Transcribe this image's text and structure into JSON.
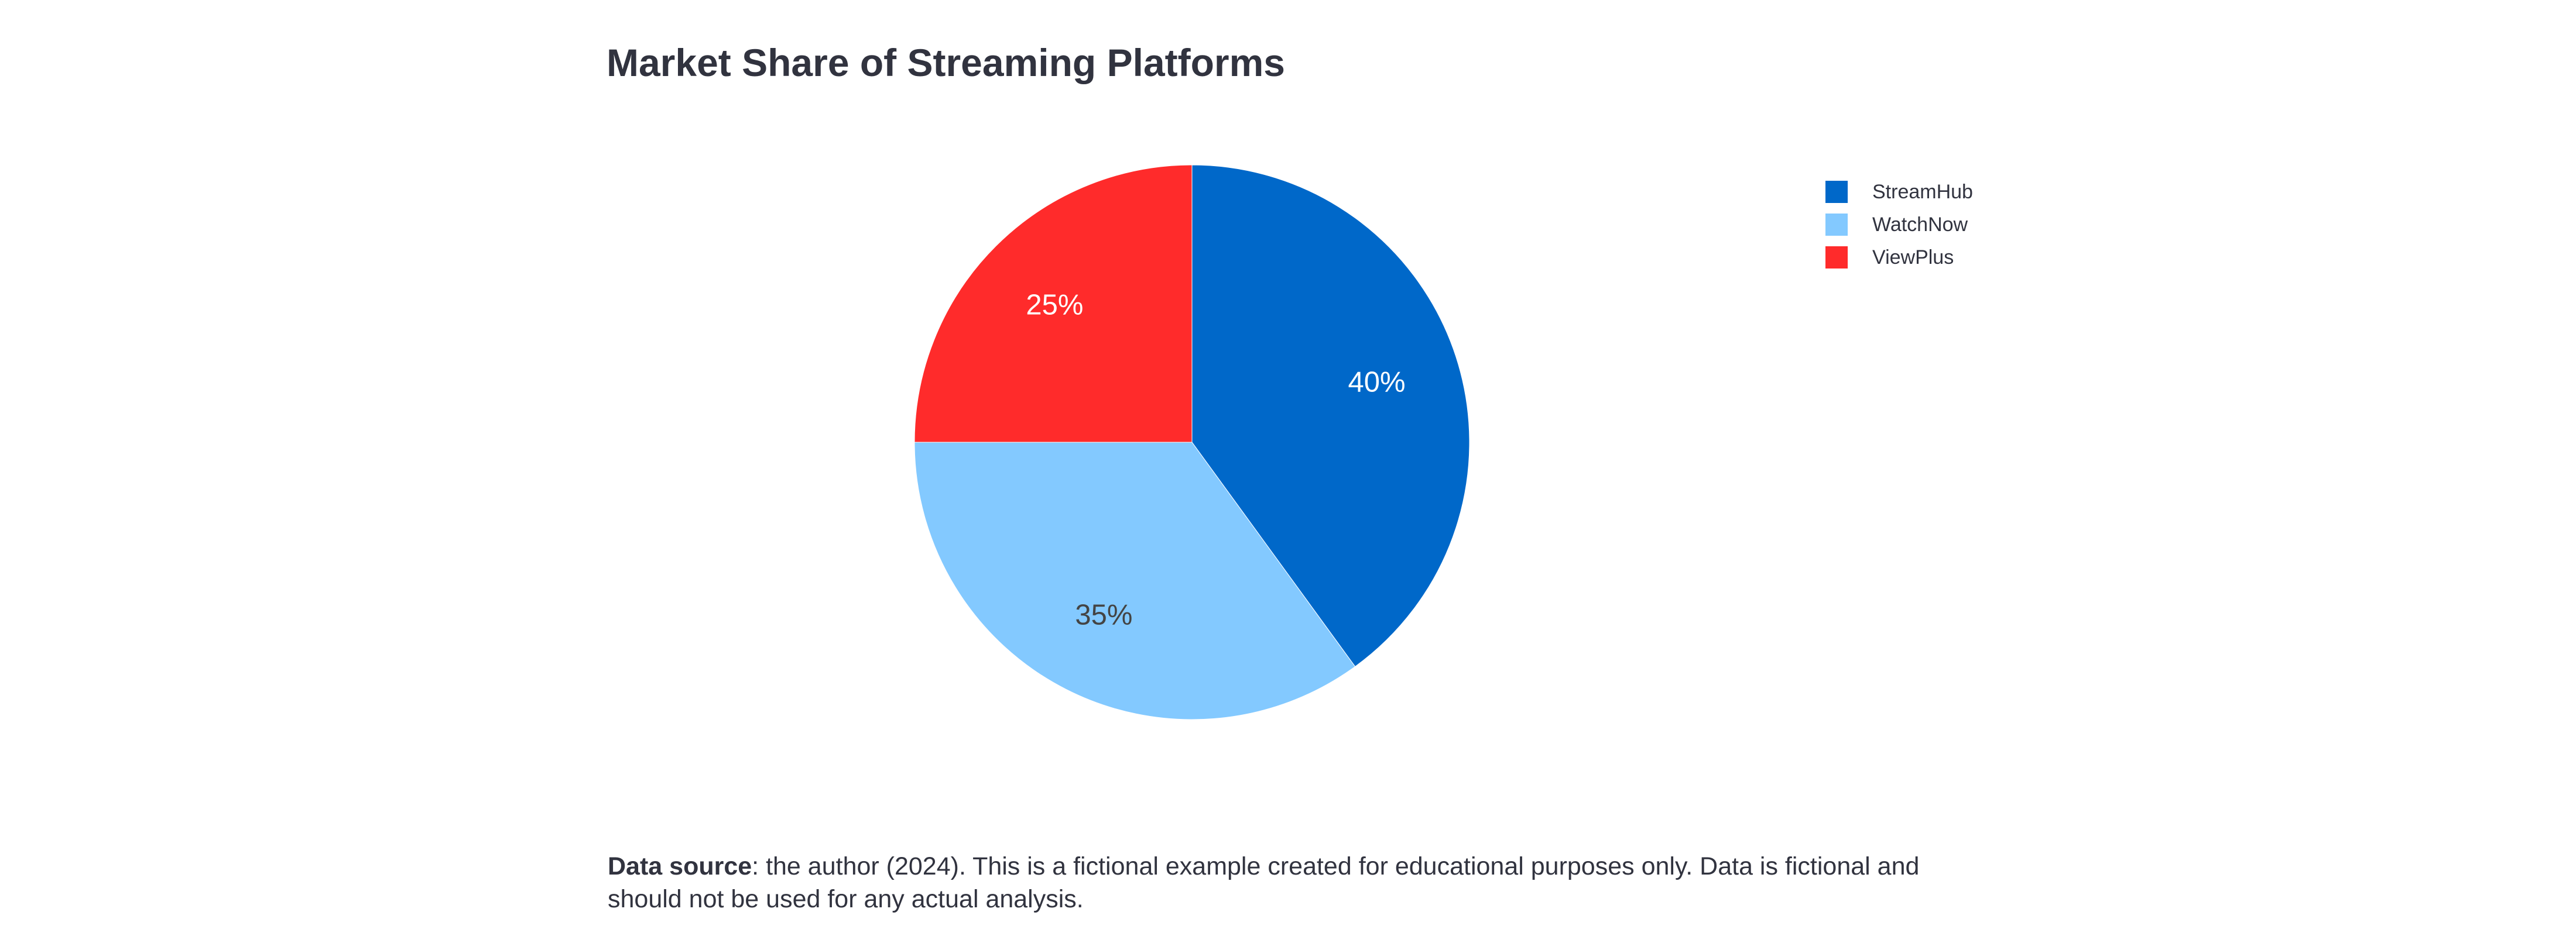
{
  "chart_data": {
    "type": "pie",
    "title": "Market Share of Streaming Platforms",
    "categories": [
      "StreamHub",
      "WatchNow",
      "ViewPlus"
    ],
    "values": [
      40,
      35,
      25
    ],
    "labels": [
      "40%",
      "35%",
      "25%"
    ],
    "colors": [
      "#0068c9",
      "#83c9ff",
      "#ff2b2b"
    ],
    "label_colors": [
      "#ffffff",
      "#444444",
      "#ffffff"
    ],
    "legend_position": "top-right",
    "start": "12 o'clock",
    "direction": "clockwise"
  },
  "caption": {
    "source_label": "Data source",
    "text": ": the author (2024). This is a fictional example created for educational purposes only. Data is fictional and should not be used for any actual analysis."
  }
}
